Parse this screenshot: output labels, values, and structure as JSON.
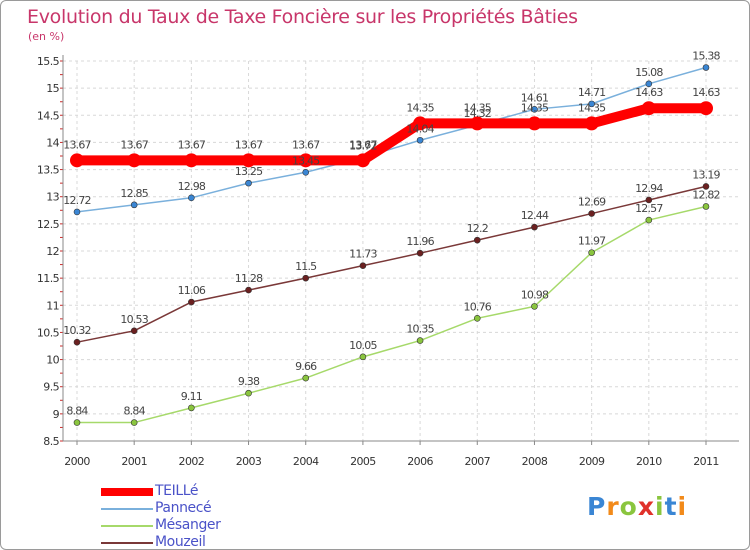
{
  "title": "Evolution du Taux de Taxe Foncière sur les Propriétés Bâties",
  "unit_label": "(en %)",
  "logo": {
    "letters": [
      "P",
      "r",
      "o",
      "x",
      "i",
      "t",
      "i"
    ],
    "colors": [
      "#3a86d4",
      "#f28a1a",
      "#8ac53e",
      "#e0312a",
      "#8ac53e",
      "#3a86d4",
      "#f28a1a"
    ]
  },
  "chart_data": {
    "type": "line",
    "title": "Evolution du Taux de Taxe Foncière sur les Propriétés Bâties",
    "ylabel": "(en %)",
    "ylim": [
      8.5,
      15.5
    ],
    "yticks": [
      "8.5",
      "9",
      "9.5",
      "10",
      "10.5",
      "11",
      "11.5",
      "12",
      "12.5",
      "13",
      "13.5",
      "14",
      "14.5",
      "15",
      "15.5"
    ],
    "categories": [
      "2000",
      "2001",
      "2002",
      "2003",
      "2004",
      "2005",
      "2006",
      "2007",
      "2008",
      "2009",
      "2010",
      "2011"
    ],
    "series": [
      {
        "name": "TEILLé",
        "color": "#ff0000",
        "bold": true,
        "values": [
          13.67,
          13.67,
          13.67,
          13.67,
          13.67,
          13.67,
          14.35,
          14.35,
          14.35,
          14.35,
          14.63,
          14.63
        ],
        "labels": [
          "13.67",
          "13.67",
          "13.67",
          "13.67",
          "13.67",
          "13.67",
          "14.35",
          "14.35",
          "14.35",
          "14.35",
          "14.63",
          "14.63"
        ]
      },
      {
        "name": "Pannecé",
        "color": "#7ab0dc",
        "point": "#3a86d4",
        "values": [
          12.72,
          12.85,
          12.98,
          13.25,
          13.45,
          13.72,
          14.04,
          14.32,
          14.61,
          14.71,
          15.08,
          15.38
        ],
        "labels": [
          "12.72",
          "12.85",
          "12.98",
          "13.25",
          "13.45",
          "13.72",
          "14.04",
          "14.32",
          "14.61",
          "14.71",
          "15.08",
          "15.38"
        ]
      },
      {
        "name": "Mésanger",
        "color": "#a6d96a",
        "point": "#8ac53e",
        "values": [
          8.84,
          8.84,
          9.11,
          9.38,
          9.66,
          10.05,
          10.35,
          10.76,
          10.98,
          11.97,
          12.57,
          12.82
        ],
        "labels": [
          "8.84",
          "8.84",
          "9.11",
          "9.38",
          "9.66",
          "10.05",
          "10.35",
          "10.76",
          "10.98",
          "11.97",
          "12.57",
          "12.82"
        ]
      },
      {
        "name": "Mouzeil",
        "color": "#7a3838",
        "point": "#6b2020",
        "values": [
          10.32,
          10.53,
          11.06,
          11.28,
          11.5,
          11.73,
          11.96,
          12.2,
          12.44,
          12.69,
          12.94,
          13.19
        ],
        "labels": [
          "10.32",
          "10.53",
          "11.06",
          "11.28",
          "11.5",
          "11.73",
          "11.96",
          "12.2",
          "12.44",
          "12.69",
          "12.94",
          "13.19"
        ]
      }
    ]
  }
}
